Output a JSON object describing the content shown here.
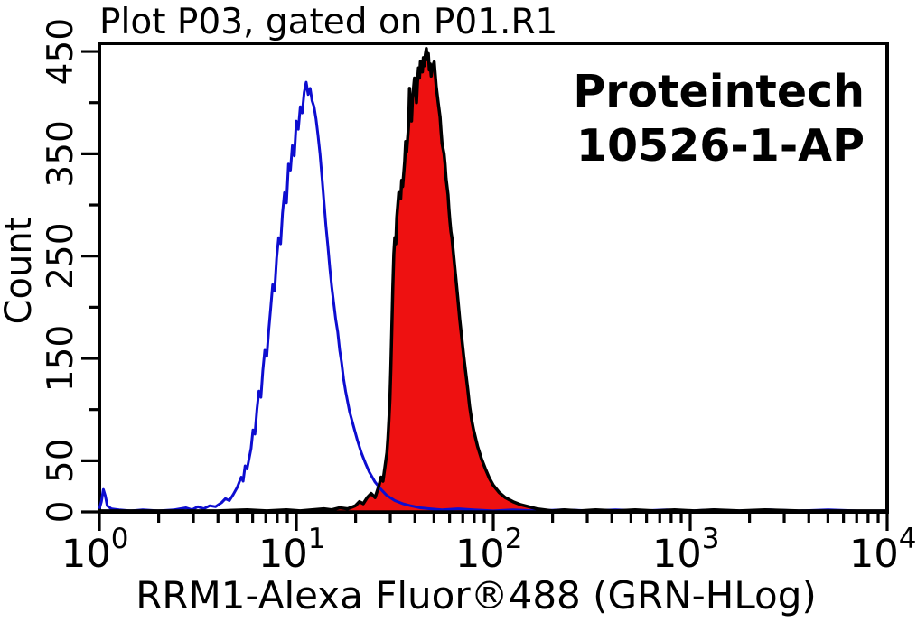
{
  "chart_data": {
    "type": "area",
    "subtype": "flow-cytometry-overlay-histogram",
    "title": "Plot P03, gated on P01.R1",
    "xlabel": "RRM1-Alexa Fluor®488 (GRN-HLog)",
    "ylabel": "Count",
    "annotation": [
      "Proteintech",
      "10526-1-AP"
    ],
    "x_scale": "log10",
    "x_range_exponents": [
      0,
      4
    ],
    "ylim": [
      0,
      458
    ],
    "grid": false,
    "legend": "none",
    "axes": {
      "x_tick_exponents": [
        0,
        1,
        2,
        3,
        4
      ],
      "x_tick_base": "10",
      "y_labeled_ticks": [
        0,
        50,
        150,
        250,
        350,
        450
      ],
      "y_minor_ticks": [
        100,
        200,
        300,
        400
      ]
    },
    "series": [
      {
        "name": "control-open-histogram",
        "peak_x": 11,
        "peak_count": 420,
        "line_color": "#0d0dd0",
        "fill": "none",
        "points_log10x_count": [
          [
            0.0,
            3
          ],
          [
            0.01,
            10
          ],
          [
            0.02,
            22
          ],
          [
            0.03,
            16
          ],
          [
            0.04,
            6
          ],
          [
            0.06,
            3
          ],
          [
            0.1,
            2
          ],
          [
            0.16,
            1
          ],
          [
            0.22,
            2
          ],
          [
            0.3,
            1
          ],
          [
            0.38,
            2
          ],
          [
            0.44,
            4
          ],
          [
            0.47,
            2
          ],
          [
            0.5,
            5
          ],
          [
            0.53,
            3
          ],
          [
            0.56,
            6
          ],
          [
            0.59,
            5
          ],
          [
            0.62,
            9
          ],
          [
            0.64,
            13
          ],
          [
            0.66,
            11
          ],
          [
            0.68,
            17
          ],
          [
            0.7,
            24
          ],
          [
            0.72,
            34
          ],
          [
            0.73,
            30
          ],
          [
            0.74,
            45
          ],
          [
            0.75,
            42
          ],
          [
            0.77,
            62
          ],
          [
            0.78,
            80
          ],
          [
            0.79,
            76
          ],
          [
            0.8,
            100
          ],
          [
            0.81,
            118
          ],
          [
            0.82,
            112
          ],
          [
            0.83,
            138
          ],
          [
            0.84,
            158
          ],
          [
            0.85,
            152
          ],
          [
            0.86,
            178
          ],
          [
            0.87,
            200
          ],
          [
            0.88,
            222
          ],
          [
            0.89,
            216
          ],
          [
            0.9,
            248
          ],
          [
            0.91,
            268
          ],
          [
            0.92,
            262
          ],
          [
            0.93,
            292
          ],
          [
            0.94,
            312
          ],
          [
            0.95,
            302
          ],
          [
            0.96,
            340
          ],
          [
            0.97,
            334
          ],
          [
            0.98,
            358
          ],
          [
            0.99,
            348
          ],
          [
            1.0,
            382
          ],
          [
            1.01,
            374
          ],
          [
            1.02,
            396
          ],
          [
            1.03,
            390
          ],
          [
            1.04,
            410
          ],
          [
            1.05,
            420
          ],
          [
            1.06,
            408
          ],
          [
            1.07,
            414
          ],
          [
            1.08,
            402
          ],
          [
            1.09,
            396
          ],
          [
            1.1,
            384
          ],
          [
            1.11,
            368
          ],
          [
            1.12,
            350
          ],
          [
            1.13,
            328
          ],
          [
            1.14,
            304
          ],
          [
            1.15,
            280
          ],
          [
            1.16,
            260
          ],
          [
            1.17,
            238
          ],
          [
            1.18,
            220
          ],
          [
            1.19,
            204
          ],
          [
            1.2,
            188
          ],
          [
            1.21,
            176
          ],
          [
            1.22,
            158
          ],
          [
            1.23,
            146
          ],
          [
            1.24,
            130
          ],
          [
            1.25,
            118
          ],
          [
            1.27,
            98
          ],
          [
            1.29,
            84
          ],
          [
            1.31,
            70
          ],
          [
            1.33,
            58
          ],
          [
            1.35,
            48
          ],
          [
            1.37,
            39
          ],
          [
            1.4,
            29
          ],
          [
            1.43,
            22
          ],
          [
            1.46,
            16
          ],
          [
            1.5,
            11
          ],
          [
            1.54,
            8
          ],
          [
            1.58,
            6
          ],
          [
            1.63,
            4
          ],
          [
            1.68,
            3
          ],
          [
            1.74,
            2
          ],
          [
            1.82,
            3
          ],
          [
            1.9,
            2
          ],
          [
            2.0,
            1
          ],
          [
            2.1,
            2
          ],
          [
            2.22,
            1
          ],
          [
            2.35,
            2
          ],
          [
            2.5,
            1
          ],
          [
            2.62,
            2
          ],
          [
            2.75,
            1
          ],
          [
            2.88,
            2
          ],
          [
            3.0,
            1
          ],
          [
            3.12,
            2
          ],
          [
            3.25,
            1
          ],
          [
            3.4,
            2
          ],
          [
            3.55,
            1
          ],
          [
            3.7,
            2
          ],
          [
            3.85,
            1
          ],
          [
            4.0,
            1
          ]
        ]
      },
      {
        "name": "rrm1-filled-histogram",
        "peak_x": 46,
        "peak_count": 453,
        "line_color": "#000000",
        "fill": "#ee1111",
        "points_log10x_count": [
          [
            0.0,
            1
          ],
          [
            0.2,
            1
          ],
          [
            0.4,
            1
          ],
          [
            0.6,
            1
          ],
          [
            0.75,
            2
          ],
          [
            0.85,
            1
          ],
          [
            0.95,
            2
          ],
          [
            1.02,
            1
          ],
          [
            1.08,
            2
          ],
          [
            1.14,
            3
          ],
          [
            1.18,
            2
          ],
          [
            1.22,
            4
          ],
          [
            1.26,
            3
          ],
          [
            1.3,
            6
          ],
          [
            1.32,
            10
          ],
          [
            1.34,
            8
          ],
          [
            1.36,
            14
          ],
          [
            1.38,
            18
          ],
          [
            1.4,
            14
          ],
          [
            1.42,
            26
          ],
          [
            1.43,
            34
          ],
          [
            1.44,
            30
          ],
          [
            1.45,
            44
          ],
          [
            1.46,
            58
          ],
          [
            1.465,
            72
          ],
          [
            1.47,
            90
          ],
          [
            1.475,
            110
          ],
          [
            1.48,
            140
          ],
          [
            1.485,
            180
          ],
          [
            1.49,
            220
          ],
          [
            1.495,
            252
          ],
          [
            1.5,
            268
          ],
          [
            1.505,
            262
          ],
          [
            1.51,
            288
          ],
          [
            1.52,
            312
          ],
          [
            1.53,
            306
          ],
          [
            1.535,
            324
          ],
          [
            1.54,
            318
          ],
          [
            1.55,
            342
          ],
          [
            1.555,
            362
          ],
          [
            1.56,
            352
          ],
          [
            1.57,
            378
          ],
          [
            1.575,
            414
          ],
          [
            1.58,
            394
          ],
          [
            1.585,
            382
          ],
          [
            1.59,
            404
          ],
          [
            1.6,
            424
          ],
          [
            1.605,
            414
          ],
          [
            1.61,
            400
          ],
          [
            1.615,
            420
          ],
          [
            1.62,
            434
          ],
          [
            1.625,
            424
          ],
          [
            1.63,
            440
          ],
          [
            1.64,
            430
          ],
          [
            1.645,
            444
          ],
          [
            1.65,
            436
          ],
          [
            1.655,
            447
          ],
          [
            1.66,
            453
          ],
          [
            1.665,
            442
          ],
          [
            1.67,
            448
          ],
          [
            1.675,
            432
          ],
          [
            1.68,
            438
          ],
          [
            1.685,
            426
          ],
          [
            1.69,
            434
          ],
          [
            1.7,
            440
          ],
          [
            1.705,
            428
          ],
          [
            1.71,
            416
          ],
          [
            1.72,
            400
          ],
          [
            1.73,
            386
          ],
          [
            1.735,
            372
          ],
          [
            1.74,
            360
          ],
          [
            1.75,
            350
          ],
          [
            1.755,
            340
          ],
          [
            1.76,
            326
          ],
          [
            1.77,
            310
          ],
          [
            1.775,
            296
          ],
          [
            1.78,
            284
          ],
          [
            1.785,
            274
          ],
          [
            1.79,
            268
          ],
          [
            1.8,
            248
          ],
          [
            1.81,
            228
          ],
          [
            1.82,
            208
          ],
          [
            1.83,
            188
          ],
          [
            1.84,
            170
          ],
          [
            1.85,
            152
          ],
          [
            1.86,
            136
          ],
          [
            1.87,
            120
          ],
          [
            1.88,
            103
          ],
          [
            1.89,
            90
          ],
          [
            1.9,
            80
          ],
          [
            1.92,
            64
          ],
          [
            1.94,
            52
          ],
          [
            1.96,
            42
          ],
          [
            1.98,
            33
          ],
          [
            2.0,
            26
          ],
          [
            2.03,
            19
          ],
          [
            2.06,
            14
          ],
          [
            2.1,
            10
          ],
          [
            2.14,
            7
          ],
          [
            2.18,
            5
          ],
          [
            2.22,
            3
          ],
          [
            2.26,
            2
          ],
          [
            2.3,
            1
          ],
          [
            2.36,
            2
          ],
          [
            2.44,
            1
          ],
          [
            2.52,
            2
          ],
          [
            2.62,
            1
          ],
          [
            2.72,
            2
          ],
          [
            2.82,
            1
          ],
          [
            2.92,
            2
          ],
          [
            3.02,
            1
          ],
          [
            3.12,
            2
          ],
          [
            3.25,
            1
          ],
          [
            3.38,
            2
          ],
          [
            3.55,
            1
          ],
          [
            3.72,
            1
          ],
          [
            3.9,
            1
          ],
          [
            4.0,
            1
          ]
        ]
      }
    ]
  },
  "colors": {
    "background": "#ffffff",
    "frame": "#000000",
    "text": "#000000",
    "control_line": "#0d0dd0",
    "stained_fill": "#ee1111",
    "stained_outline": "#000000"
  }
}
